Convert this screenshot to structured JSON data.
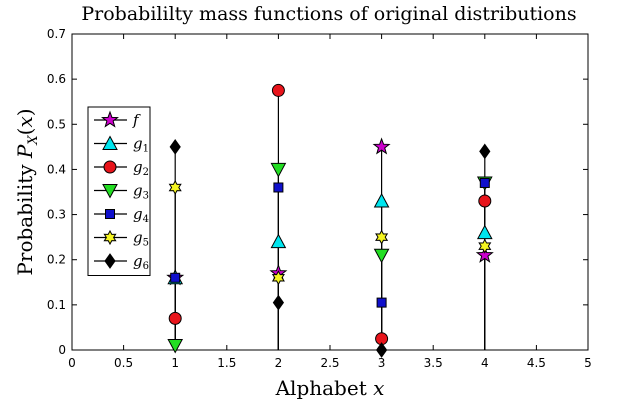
{
  "chart_data": {
    "type": "stem",
    "title": "Probabililty mass functions of original distributions",
    "xlabel": "Alphabet x",
    "ylabel": "Probability P_X(x)",
    "xlim": [
      0,
      5
    ],
    "ylim": [
      0,
      0.7
    ],
    "xticks": [
      0,
      0.5,
      1,
      1.5,
      2,
      2.5,
      3,
      3.5,
      4,
      4.5,
      5
    ],
    "yticks": [
      0,
      0.1,
      0.2,
      0.3,
      0.4,
      0.5,
      0.6,
      0.7
    ],
    "grid": false,
    "legend_position": "left",
    "x": [
      1,
      2,
      3,
      4
    ],
    "series": [
      {
        "name": "f",
        "values": [
          0.16,
          0.17,
          0.45,
          0.21
        ],
        "marker": "pentagram",
        "color": "#cc00cc"
      },
      {
        "name": "g1",
        "values": [
          0.16,
          0.24,
          0.33,
          0.26
        ],
        "marker": "triangle-up",
        "color": "#00e5ee"
      },
      {
        "name": "g2",
        "values": [
          0.07,
          0.575,
          0.025,
          0.33
        ],
        "marker": "circle",
        "color": "#e8141b"
      },
      {
        "name": "g3",
        "values": [
          0.01,
          0.4,
          0.21,
          0.37
        ],
        "marker": "triangle-down",
        "color": "#22dd22"
      },
      {
        "name": "g4",
        "values": [
          0.16,
          0.36,
          0.105,
          0.37
        ],
        "marker": "square",
        "color": "#1010cc"
      },
      {
        "name": "g5",
        "values": [
          0.36,
          0.16,
          0.25,
          0.23
        ],
        "marker": "hexagram",
        "color": "#f5f520"
      },
      {
        "name": "g6",
        "values": [
          0.45,
          0.105,
          0.0,
          0.44
        ],
        "marker": "diamond",
        "color": "#000000"
      }
    ]
  }
}
